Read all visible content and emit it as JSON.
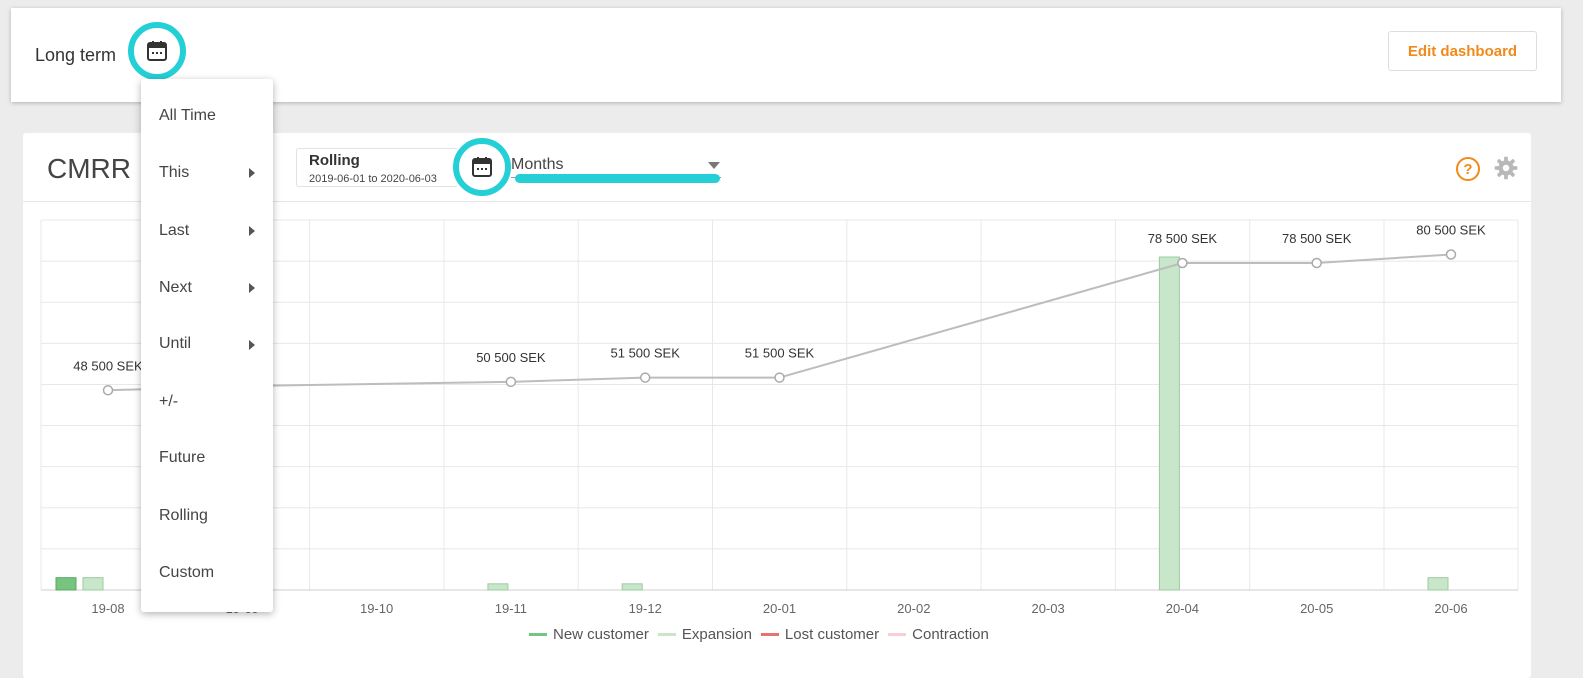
{
  "header": {
    "title": "Long term",
    "edit_label": "Edit dashboard",
    "calendar_icon": "calendar-icon"
  },
  "widget": {
    "title": "CMRR L",
    "period_label": "Rolling",
    "period_range": "2019-06-01 to 2020-06-03",
    "granularity": "Months",
    "help_icon": "help-icon",
    "settings_icon": "gear-icon"
  },
  "colors": {
    "accent_orange": "#f08a1a",
    "highlight_cyan": "#24d0d6",
    "new_customer": "#77c47e",
    "expansion": "#c8e6c9",
    "lost_customer": "#e57373",
    "contraction": "#f8cfd3",
    "line": "#bdbdbd"
  },
  "dropdown": {
    "items": [
      {
        "label": "All Time",
        "submenu": false
      },
      {
        "label": "This",
        "submenu": true
      },
      {
        "label": "Last",
        "submenu": true
      },
      {
        "label": "Next",
        "submenu": true
      },
      {
        "label": "Until",
        "submenu": true
      },
      {
        "label": "+/-",
        "submenu": false
      },
      {
        "label": "Future",
        "submenu": false
      },
      {
        "label": "Rolling",
        "submenu": false
      },
      {
        "label": "Custom",
        "submenu": false
      }
    ]
  },
  "chart_data": {
    "type": "bar",
    "categories": [
      "19-08",
      "19-09",
      "19-10",
      "19-11",
      "19-12",
      "20-01",
      "20-02",
      "20-03",
      "20-04",
      "20-05",
      "20-06"
    ],
    "line_series": {
      "values": [
        48500,
        49500,
        null,
        50500,
        51500,
        51500,
        null,
        null,
        78500,
        78500,
        80500
      ],
      "labels": [
        "48 500 SEK",
        "…K",
        "",
        "50 500 SEK",
        "51 500 SEK",
        "51 500 SEK",
        "",
        "",
        "78 500 SEK",
        "78 500 SEK",
        "80 500 SEK"
      ]
    },
    "series": [
      {
        "name": "New customer",
        "values": [
          1000,
          0,
          0,
          0,
          0,
          0,
          0,
          0,
          0,
          0,
          0
        ]
      },
      {
        "name": "Expansion",
        "values": [
          1000,
          0,
          0,
          500,
          500,
          0,
          0,
          0,
          27000,
          0,
          1000
        ]
      },
      {
        "name": "Lost customer",
        "values": [
          0,
          0,
          0,
          0,
          0,
          0,
          0,
          0,
          0,
          0,
          0
        ]
      },
      {
        "name": "Contraction",
        "values": [
          0,
          0,
          0,
          0,
          0,
          0,
          0,
          0,
          0,
          0,
          0
        ]
      }
    ],
    "grid": true,
    "legend": "bottom"
  }
}
